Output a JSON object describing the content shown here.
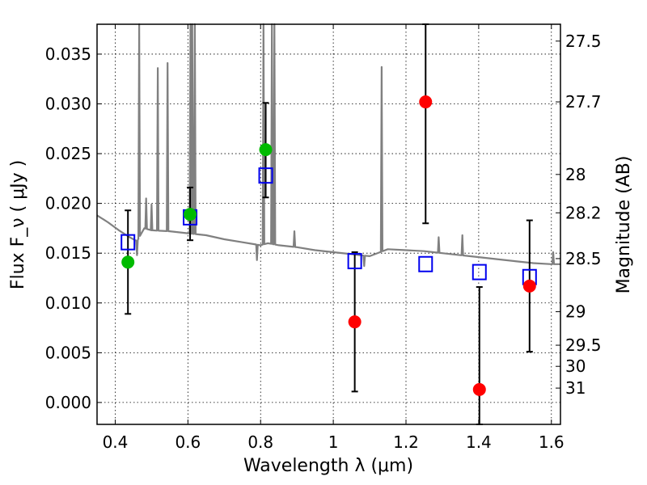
{
  "chart_data": {
    "type": "scatter",
    "xlabel": "Wavelength  λ (μm)",
    "ylabel": "Flux  F_ν  ( μJy )",
    "y2label": "Magnitude (AB)",
    "xlim": [
      0.35,
      1.625
    ],
    "ylim": [
      -0.0022,
      0.038
    ],
    "grid": true,
    "xticks": [
      {
        "value": 0.4,
        "label": "0.4"
      },
      {
        "value": 0.6,
        "label": "0.6"
      },
      {
        "value": 0.8,
        "label": "0.8"
      },
      {
        "value": 1.0,
        "label": "1"
      },
      {
        "value": 1.2,
        "label": "1.2"
      },
      {
        "value": 1.4,
        "label": "1.4"
      },
      {
        "value": 1.6,
        "label": "1.6"
      }
    ],
    "yticks": [
      {
        "value": 0.0,
        "label": "0.000"
      },
      {
        "value": 0.005,
        "label": "0.005"
      },
      {
        "value": 0.01,
        "label": "0.010"
      },
      {
        "value": 0.015,
        "label": "0.015"
      },
      {
        "value": 0.02,
        "label": "0.020"
      },
      {
        "value": 0.025,
        "label": "0.025"
      },
      {
        "value": 0.03,
        "label": "0.030"
      },
      {
        "value": 0.035,
        "label": "0.035"
      }
    ],
    "magnitude_ticks": [
      {
        "value": 27.5,
        "label": "27.5"
      },
      {
        "value": 27.7,
        "label": "27.7"
      },
      {
        "value": 28.0,
        "label": "28"
      },
      {
        "value": 28.2,
        "label": "28.2"
      },
      {
        "value": 28.5,
        "label": "28.5"
      },
      {
        "value": 29.0,
        "label": "29"
      },
      {
        "value": 29.5,
        "label": "29.5"
      },
      {
        "value": 30.0,
        "label": "30"
      },
      {
        "value": 31.0,
        "label": "31"
      }
    ],
    "observed": [
      {
        "x": 0.435,
        "y": 0.0141,
        "err_low": 0.0089,
        "err_high": 0.0193,
        "color": "#00bb00"
      },
      {
        "x": 0.606,
        "y": 0.0189,
        "err_low": 0.0163,
        "err_high": 0.0216,
        "color": "#00bb00"
      },
      {
        "x": 0.814,
        "y": 0.0254,
        "err_low": 0.0206,
        "err_high": 0.0301,
        "color": "#00bb00"
      },
      {
        "x": 1.059,
        "y": 0.0081,
        "err_low": 0.0011,
        "err_high": 0.0151,
        "color": "#ff0000"
      },
      {
        "x": 1.254,
        "y": 0.0302,
        "err_low": 0.018,
        "err_high": 0.038,
        "color": "#ff0000"
      },
      {
        "x": 1.402,
        "y": 0.0013,
        "err_low": -0.0022,
        "err_high": 0.0116,
        "color": "#ff0000"
      },
      {
        "x": 1.54,
        "y": 0.0117,
        "err_low": 0.0051,
        "err_high": 0.0183,
        "color": "#ff0000"
      }
    ],
    "model_bands": [
      {
        "x": 0.435,
        "y": 0.0161
      },
      {
        "x": 0.606,
        "y": 0.0186
      },
      {
        "x": 0.814,
        "y": 0.0228
      },
      {
        "x": 1.059,
        "y": 0.0142
      },
      {
        "x": 1.254,
        "y": 0.0139
      },
      {
        "x": 1.402,
        "y": 0.0131
      },
      {
        "x": 1.54,
        "y": 0.0126
      }
    ],
    "model_spectrum": {
      "color": "#808080",
      "continuum": [
        [
          0.35,
          0.0188
        ],
        [
          0.38,
          0.0181
        ],
        [
          0.41,
          0.0173
        ],
        [
          0.44,
          0.0166
        ],
        [
          0.46,
          0.0162
        ],
        [
          0.48,
          0.0175
        ],
        [
          0.5,
          0.0173
        ],
        [
          0.55,
          0.0172
        ],
        [
          0.6,
          0.017
        ],
        [
          0.65,
          0.0168
        ],
        [
          0.7,
          0.0164
        ],
        [
          0.75,
          0.0161
        ],
        [
          0.8,
          0.0158
        ],
        [
          0.82,
          0.016
        ],
        [
          0.85,
          0.0158
        ],
        [
          0.9,
          0.0156
        ],
        [
          0.95,
          0.0153
        ],
        [
          1.0,
          0.0151
        ],
        [
          1.05,
          0.0149
        ],
        [
          1.1,
          0.0147
        ],
        [
          1.15,
          0.0154
        ],
        [
          1.2,
          0.0153
        ],
        [
          1.25,
          0.0152
        ],
        [
          1.3,
          0.015
        ],
        [
          1.35,
          0.0148
        ],
        [
          1.4,
          0.0146
        ],
        [
          1.45,
          0.0144
        ],
        [
          1.5,
          0.0142
        ],
        [
          1.55,
          0.014
        ],
        [
          1.6,
          0.0139
        ],
        [
          1.625,
          0.0139
        ]
      ],
      "emission_lines": [
        {
          "x": 0.466,
          "peak": 0.038
        },
        {
          "x": 0.485,
          "peak": 0.0205
        },
        {
          "x": 0.5,
          "peak": 0.0199
        },
        {
          "x": 0.517,
          "peak": 0.0336
        },
        {
          "x": 0.544,
          "peak": 0.0341
        },
        {
          "x": 0.607,
          "peak": 0.038
        },
        {
          "x": 0.612,
          "peak": 0.038
        },
        {
          "x": 0.619,
          "peak": 0.038
        },
        {
          "x": 0.808,
          "peak": 0.038
        },
        {
          "x": 0.831,
          "peak": 0.038
        },
        {
          "x": 0.838,
          "peak": 0.038
        },
        {
          "x": 0.893,
          "peak": 0.0172
        },
        {
          "x": 1.133,
          "peak": 0.0337
        },
        {
          "x": 1.29,
          "peak": 0.0166
        },
        {
          "x": 1.355,
          "peak": 0.0168
        },
        {
          "x": 1.605,
          "peak": 0.0151
        }
      ],
      "absorption_lines": [
        {
          "x": 0.46,
          "trough": 0.0148
        },
        {
          "x": 0.79,
          "trough": 0.0143
        },
        {
          "x": 1.085,
          "trough": 0.0137
        }
      ]
    }
  }
}
